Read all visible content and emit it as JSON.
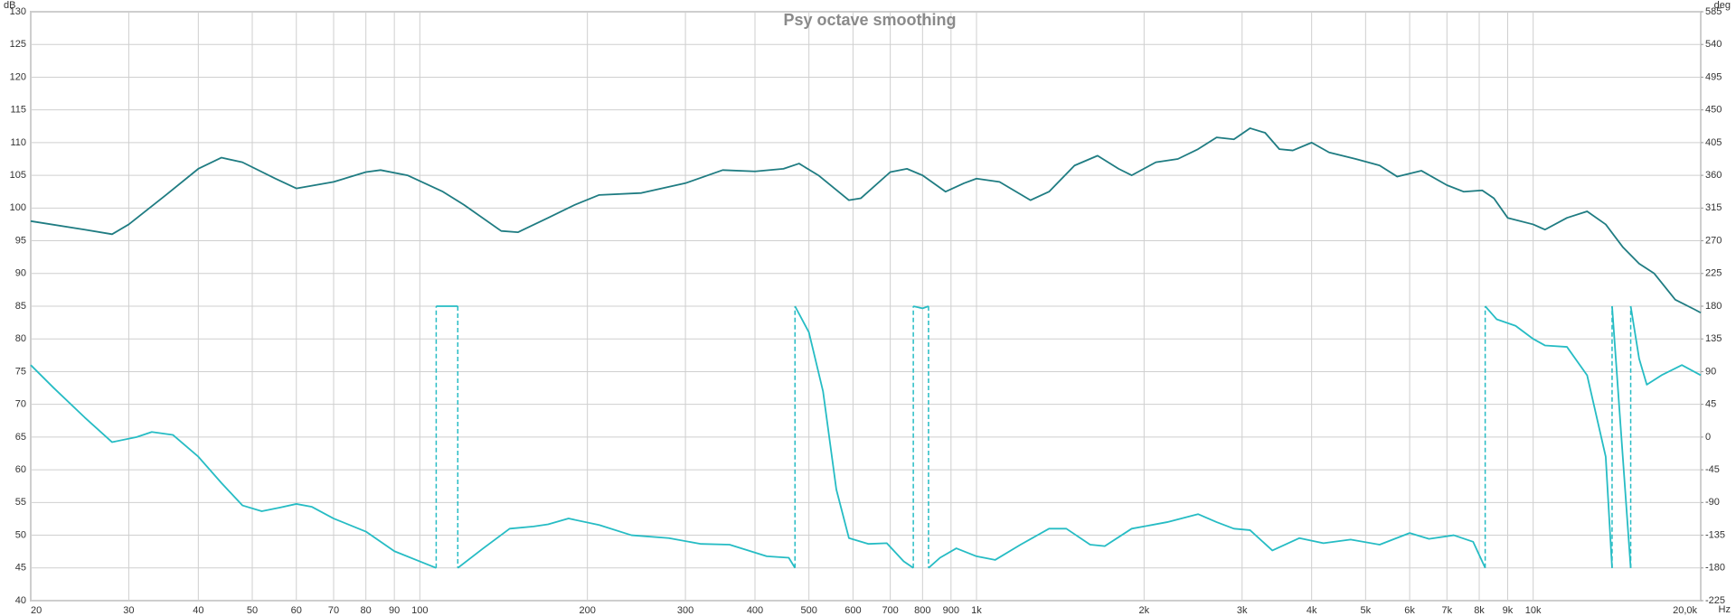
{
  "chart_data": {
    "type": "line",
    "title": "Psy octave smoothing",
    "y_label": "dB",
    "y2_label": "deg",
    "x_unit": "Hz",
    "xscale": "log",
    "grid": true,
    "xlim": [
      20,
      20000
    ],
    "xticks": [
      20,
      30,
      40,
      50,
      60,
      70,
      80,
      90,
      100,
      200,
      300,
      400,
      500,
      600,
      700,
      800,
      900,
      {
        "value": 1000,
        "label": "1k"
      },
      {
        "value": 2000,
        "label": "2k"
      },
      {
        "value": 3000,
        "label": "3k"
      },
      {
        "value": 4000,
        "label": "4k"
      },
      {
        "value": 5000,
        "label": "5k"
      },
      {
        "value": 6000,
        "label": "6k"
      },
      {
        "value": 7000,
        "label": "7k"
      },
      {
        "value": 8000,
        "label": "8k"
      },
      {
        "value": 9000,
        "label": "9k"
      },
      {
        "value": 10000,
        "label": "10k"
      },
      {
        "value": 20000,
        "label": "20,0k"
      }
    ],
    "ylim": [
      40,
      130
    ],
    "yticks": [
      40,
      45,
      50,
      55,
      60,
      65,
      70,
      75,
      80,
      85,
      90,
      95,
      100,
      105,
      110,
      115,
      120,
      125,
      130
    ],
    "y2lim": [
      -225,
      585
    ],
    "y2ticks": [
      -225,
      -180,
      -135,
      -90,
      -45,
      0,
      45,
      90,
      135,
      180,
      225,
      270,
      315,
      360,
      405,
      450,
      495,
      540,
      585
    ],
    "series": [
      {
        "color": "#1f7c82",
        "x": [
          20,
          25,
          28,
          30,
          35,
          40,
          44,
          48,
          55,
          60,
          70,
          80,
          85,
          95,
          110,
          120,
          140,
          150,
          170,
          190,
          210,
          250,
          300,
          350,
          400,
          450,
          480,
          520,
          590,
          620,
          700,
          750,
          800,
          880,
          950,
          1000,
          1100,
          1250,
          1350,
          1500,
          1650,
          1800,
          1900,
          2100,
          2300,
          2500,
          2700,
          2900,
          3100,
          3300,
          3500,
          3700,
          4000,
          4300,
          4800,
          5300,
          5700,
          6300,
          7000,
          7500,
          8100,
          8500,
          9000,
          10000,
          10500,
          11500,
          12500,
          13500,
          14500,
          15500,
          16500,
          18000,
          19500,
          20000
        ],
        "values": [
          98,
          96.7,
          96,
          97.5,
          102,
          106,
          107.7,
          107,
          104.5,
          103,
          104,
          105.5,
          105.8,
          105,
          102.5,
          100.5,
          96.5,
          96.3,
          98.5,
          100.5,
          102,
          102.3,
          103.8,
          105.8,
          105.6,
          106,
          106.8,
          105,
          101.2,
          101.5,
          105.5,
          106,
          105,
          102.5,
          103.8,
          104.5,
          104,
          101.2,
          102.5,
          106.5,
          108,
          106,
          105,
          107,
          107.5,
          109,
          110.8,
          110.5,
          112.2,
          111.5,
          109,
          108.8,
          110,
          108.5,
          107.5,
          106.5,
          104.8,
          105.7,
          103.5,
          102.5,
          102.7,
          101.5,
          98.5,
          97.5,
          96.7,
          98.5,
          99.5,
          97.5,
          94,
          91.5,
          90,
          86,
          84.5,
          84
        ]
      },
      {
        "color": "#26bcc4",
        "axis": "y2",
        "x": [
          20,
          22,
          25,
          28,
          31,
          33,
          36,
          40,
          44,
          48,
          52,
          56,
          60,
          64,
          70,
          80,
          90,
          100,
          107,
          107,
          107,
          117,
          117,
          117,
          130,
          145,
          160,
          170,
          185,
          210,
          240,
          280,
          320,
          360,
          420,
          460,
          472,
          472,
          472,
          500,
          530,
          560,
          590,
          640,
          690,
          740,
          770,
          770,
          770,
          800,
          820,
          820,
          820,
          860,
          920,
          1000,
          1080,
          1200,
          1350,
          1450,
          1600,
          1700,
          1900,
          2200,
          2500,
          2700,
          2900,
          3100,
          3400,
          3800,
          4200,
          4700,
          5300,
          6000,
          6500,
          7200,
          7800,
          8200,
          8200,
          8200,
          8600,
          9300,
          10000,
          10500,
          11500,
          12500,
          13500,
          13860,
          13860,
          13860,
          14970,
          14970,
          14970,
          15500,
          16000,
          17000,
          18500,
          20000
        ],
        "values": [
          99,
          67.5,
          27,
          -7,
          0,
          7,
          3,
          -27,
          -63,
          -94,
          -102,
          -97,
          -92,
          -96,
          -112,
          -130,
          -157,
          -171,
          -180,
          null,
          180,
          180,
          null,
          -180,
          -153,
          -126,
          -123,
          -120,
          -112,
          -121,
          -135,
          -139,
          -147,
          -148,
          -164,
          -166,
          -180,
          null,
          180,
          144,
          63,
          -72,
          -139,
          -147,
          -146,
          -171,
          -180,
          null,
          180,
          177,
          180,
          null,
          -180,
          -166,
          -153,
          -164,
          -169,
          -148,
          -126,
          -126,
          -148,
          -150,
          -126,
          -117,
          -106,
          -117,
          -126,
          -128,
          -156,
          -139,
          -146,
          -141,
          -148,
          -132,
          -140,
          -135,
          -144,
          -180,
          null,
          180,
          162,
          153,
          135,
          126,
          124,
          85,
          -27,
          -180,
          null,
          180,
          -180,
          null,
          180,
          108,
          72,
          85,
          99,
          85
        ]
      }
    ]
  }
}
